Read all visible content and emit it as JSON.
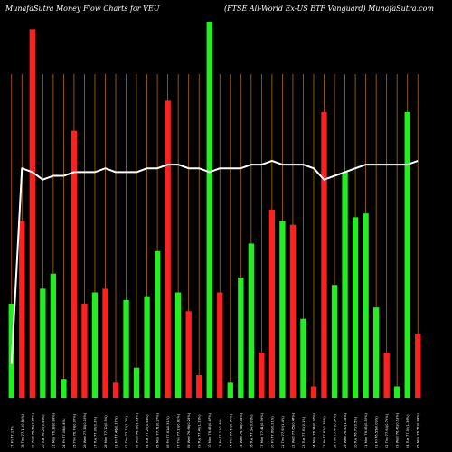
{
  "header": {
    "left": "MunafaSutra  Money Flow  Charts for VEU",
    "right": "(FTSE All-World Ex-US ETF Vanguard) MunafaSutra.com"
  },
  "chart_data": {
    "type": "bar",
    "colors": {
      "up": "#22ee22",
      "down": "#ff2020",
      "line": "#ffffff",
      "grid": "#b36b00",
      "background": "#000000"
    },
    "ylim": [
      0,
      1
    ],
    "line_ylim": [
      0,
      1
    ],
    "bars": [
      {
        "label": "17 Fri 77.17%",
        "direction": "up",
        "value": 0.25
      },
      {
        "label": "18 Thu 77.11(0.84%)",
        "direction": "down",
        "value": 0.47
      },
      {
        "label": "19 Wed 75.61(0.84%)",
        "direction": "down",
        "value": 0.98
      },
      {
        "label": "20 Tue 76.25(0.59%)",
        "direction": "up",
        "value": 0.29
      },
      {
        "label": "21 Mon 76.38(0.88%)",
        "direction": "up",
        "value": 0.33
      },
      {
        "label": "24 Fri 77.08(0.4%)",
        "direction": "up",
        "value": 0.05
      },
      {
        "label": "25 Thu 76.74(0.06%)",
        "direction": "down",
        "value": 0.71
      },
      {
        "label": "26 Wed 77.50(0.16%)",
        "direction": "down",
        "value": 0.25
      },
      {
        "label": "27 Tue 77.06(0.3%)",
        "direction": "up",
        "value": 0.28
      },
      {
        "label": "28 Mon 77.10(0.5%)",
        "direction": "down",
        "value": 0.29
      },
      {
        "label": "01 Fri 77.46(0.17%)",
        "direction": "down",
        "value": 0.04
      },
      {
        "label": "02 Thu 77.73(1.2%)",
        "direction": "up",
        "value": 0.26
      },
      {
        "label": "03 Wed 76.99(1.15%)",
        "direction": "up",
        "value": 0.08
      },
      {
        "label": "04 Tue 77.29(0.54%)",
        "direction": "up",
        "value": 0.27
      },
      {
        "label": "05 Mon 77.71(0.27%)",
        "direction": "up",
        "value": 0.39
      },
      {
        "label": "06 Fri 77.61(0.51%)",
        "direction": "down",
        "value": 0.79
      },
      {
        "label": "07 Thu 77.29(0.82%)",
        "direction": "up",
        "value": 0.28
      },
      {
        "label": "08 Wed 76.66(0.25%)",
        "direction": "down",
        "value": 0.23
      },
      {
        "label": "09 Tue 77.40(1.19%)",
        "direction": "down",
        "value": 0.06
      },
      {
        "label": "10 Mon 76.45(0.47%)",
        "direction": "up",
        "value": 1.0
      },
      {
        "label": "13 Fri 77.11(1.4%)",
        "direction": "down",
        "value": 0.28
      },
      {
        "label": "14 Thu 77.60(0.71%)",
        "direction": "up",
        "value": 0.04
      },
      {
        "label": "15 Wed 76.98(0.04%)",
        "direction": "up",
        "value": 0.32
      },
      {
        "label": "16 Tue 77.34(0.09%)",
        "direction": "up",
        "value": 0.41
      },
      {
        "label": "17 Mon 77.41(0.96%)",
        "direction": "down",
        "value": 0.12
      },
      {
        "label": "20 Fri 77.60(0.21%)",
        "direction": "down",
        "value": 0.5
      },
      {
        "label": "21 Thu 77.62(1.4%)",
        "direction": "up",
        "value": 0.47
      },
      {
        "label": "22 Wed 77.65(0.47%)",
        "direction": "down",
        "value": 0.46
      },
      {
        "label": "23 Tue 77.93(0.1%)",
        "direction": "up",
        "value": 0.21
      },
      {
        "label": "24 Mon 76.94(0.97%)",
        "direction": "down",
        "value": 0.03
      },
      {
        "label": "27 Fri 77.82(1.76%)",
        "direction": "down",
        "value": 0.76
      },
      {
        "label": "28 Thu 77.47(0.34%)",
        "direction": "up",
        "value": 0.3
      },
      {
        "label": "29 Wed 76.87(1.34%)",
        "direction": "up",
        "value": 0.6
      },
      {
        "label": "30 Tue 76.71(0.5%)",
        "direction": "up",
        "value": 0.48
      },
      {
        "label": "31 Mon 76.93(0.52%)",
        "direction": "up",
        "value": 0.49
      },
      {
        "label": "01 Fri 76.55(0.09%)",
        "direction": "up",
        "value": 0.24
      },
      {
        "label": "02 Thu 77.65(0.76%)",
        "direction": "down",
        "value": 0.12
      },
      {
        "label": "03 Wed 76.41(0.19%)",
        "direction": "up",
        "value": 0.03
      },
      {
        "label": "04 Tue 77.59(1.36%)",
        "direction": "up",
        "value": 0.76
      },
      {
        "label": "05 Mon 76.52(0.84%)",
        "direction": "down",
        "value": 0.17
      }
    ],
    "line": [
      0.09,
      0.61,
      0.6,
      0.58,
      0.59,
      0.59,
      0.6,
      0.6,
      0.6,
      0.61,
      0.6,
      0.6,
      0.6,
      0.61,
      0.61,
      0.62,
      0.62,
      0.61,
      0.61,
      0.6,
      0.61,
      0.61,
      0.61,
      0.62,
      0.62,
      0.63,
      0.62,
      0.62,
      0.62,
      0.61,
      0.58,
      0.59,
      0.6,
      0.61,
      0.62,
      0.62,
      0.62,
      0.62,
      0.62,
      0.63
    ]
  }
}
